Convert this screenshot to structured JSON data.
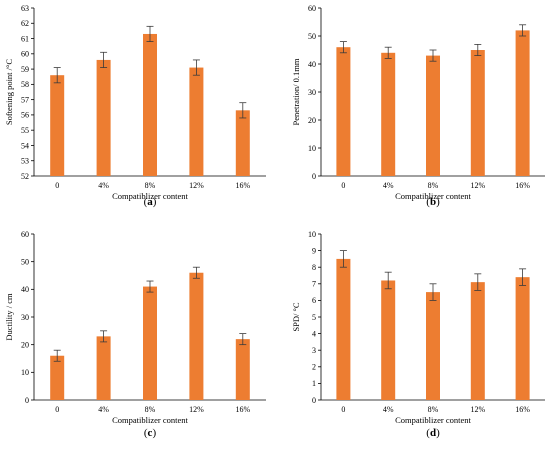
{
  "chart_data": [
    {
      "type": "bar",
      "panel_label": "a",
      "categories": [
        "0",
        "4%",
        "8%",
        "12%",
        "16%"
      ],
      "values": [
        58.6,
        59.6,
        61.3,
        59.1,
        56.3
      ],
      "errors": [
        0.5,
        0.5,
        0.5,
        0.5,
        0.5
      ],
      "xlabel": "Compatiblizer content",
      "ylabel": "Softening point /°C",
      "ylim": [
        52,
        63
      ],
      "yticks": [
        52,
        53,
        54,
        55,
        56,
        57,
        58,
        59,
        60,
        61,
        62,
        63
      ],
      "color": "#ED7D31",
      "grid": false
    },
    {
      "type": "bar",
      "panel_label": "b",
      "categories": [
        "0",
        "4%",
        "8%",
        "12%",
        "16%"
      ],
      "values": [
        46,
        44,
        43,
        45,
        52
      ],
      "errors": [
        2,
        2,
        2,
        2,
        2
      ],
      "xlabel": "Compatiblizer content",
      "ylabel": "Penetration/ 0.1mm",
      "ylim": [
        0,
        60
      ],
      "yticks": [
        0,
        10,
        20,
        30,
        40,
        50,
        60
      ],
      "color": "#ED7D31",
      "grid": false
    },
    {
      "type": "bar",
      "panel_label": "c",
      "categories": [
        "0",
        "4%",
        "8%",
        "12%",
        "16%"
      ],
      "values": [
        16,
        23,
        41,
        46,
        22
      ],
      "errors": [
        2,
        2,
        2,
        2,
        2
      ],
      "xlabel": "Compatiblizer content",
      "ylabel": "Ductility / cm",
      "ylim": [
        0,
        60
      ],
      "yticks": [
        0,
        10,
        20,
        30,
        40,
        50,
        60
      ],
      "color": "#ED7D31",
      "grid": false
    },
    {
      "type": "bar",
      "panel_label": "d",
      "categories": [
        "0",
        "4%",
        "8%",
        "12%",
        "16%"
      ],
      "values": [
        8.5,
        7.2,
        6.5,
        7.1,
        7.4
      ],
      "errors": [
        0.5,
        0.5,
        0.5,
        0.5,
        0.5
      ],
      "xlabel": "Compatiblizer content",
      "ylabel": "SPD/ °C",
      "ylim": [
        0,
        10
      ],
      "yticks": [
        0,
        1,
        2,
        3,
        4,
        5,
        6,
        7,
        8,
        9,
        10
      ],
      "color": "#ED7D31",
      "grid": false
    }
  ]
}
